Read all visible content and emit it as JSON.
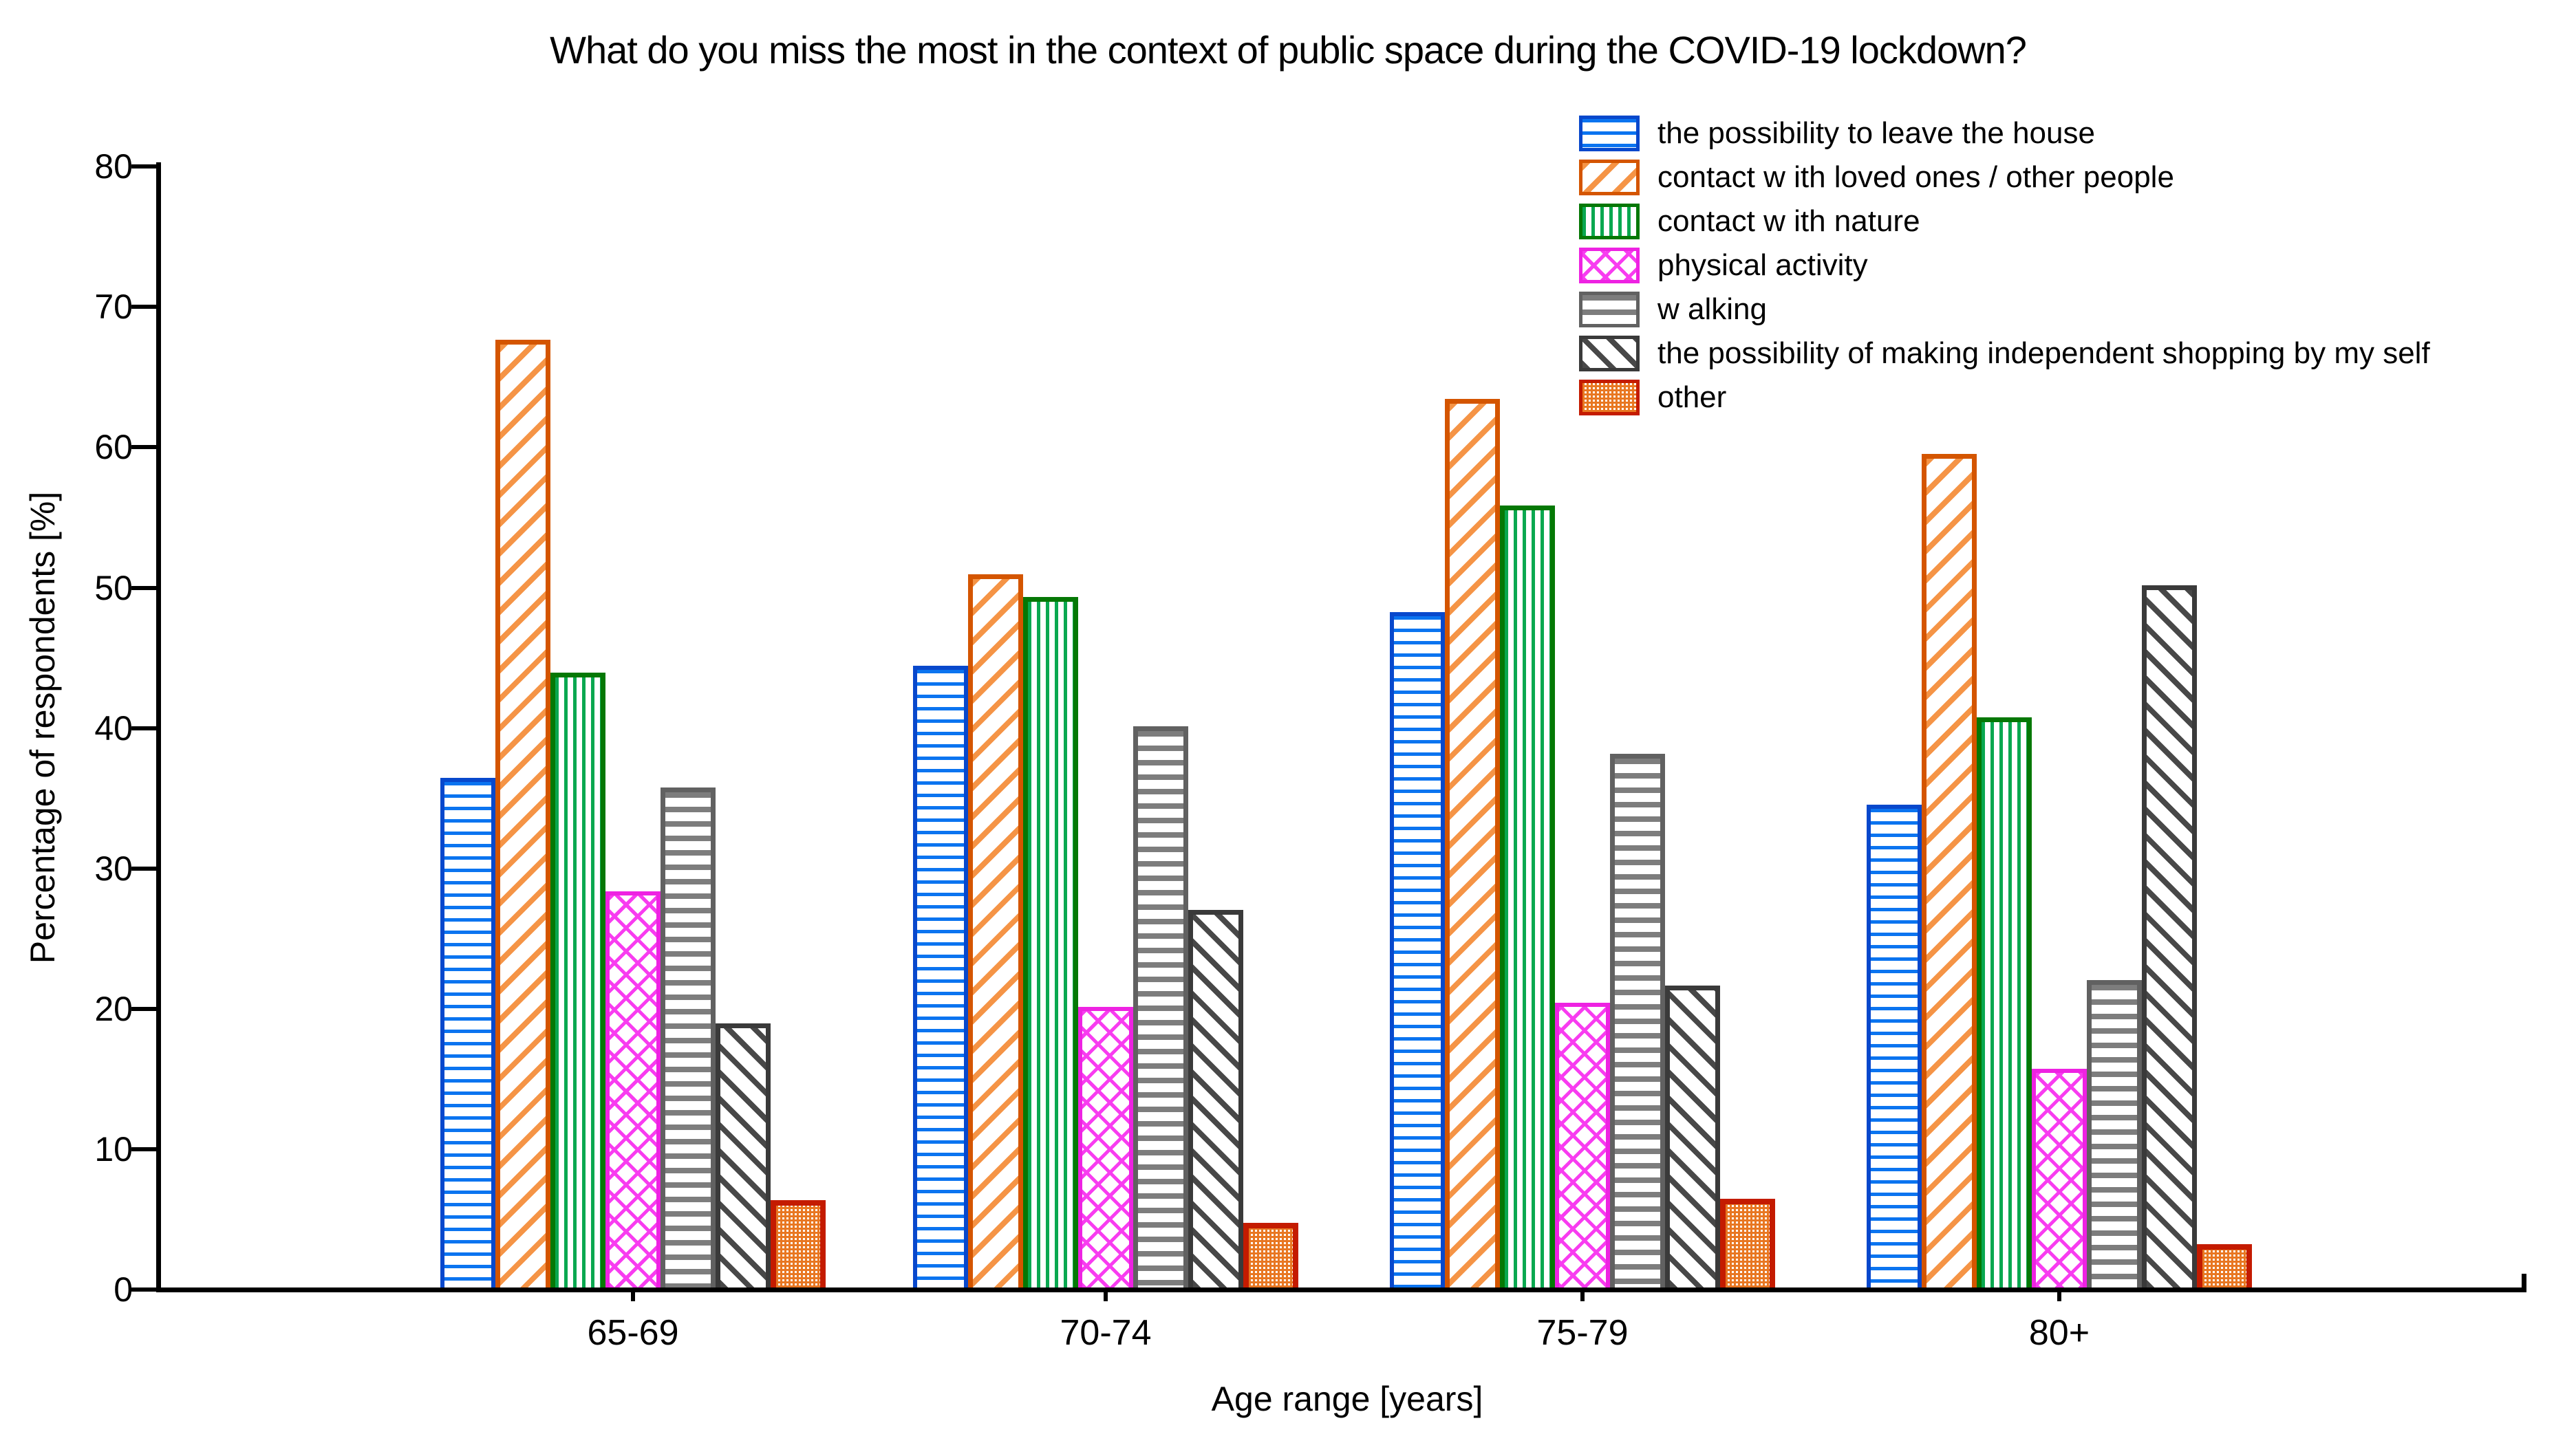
{
  "title": "What do you miss the most in the context of public space during the COVID-19 lockdown?",
  "y_axis": {
    "label": "Percentage of respondents [%]",
    "ticks": [
      0,
      10,
      20,
      30,
      40,
      50,
      60,
      70,
      80
    ],
    "min": 0,
    "max": 80
  },
  "x_axis": {
    "label": "Age range [years]"
  },
  "legend_position": "top-right",
  "chart_data": {
    "type": "bar",
    "title": "What do you miss the most in the context of public space during the COVID-19 lockdown?",
    "xlabel": "Age range [years]",
    "ylabel": "Percentage of respondents [%]",
    "ylim": [
      0,
      80
    ],
    "grid": false,
    "categories": [
      "65-69",
      "70-74",
      "75-79",
      "80+"
    ],
    "series": [
      {
        "name": "the possibility to leave the house",
        "pattern": "h-lines",
        "line_color": "#0b74f0",
        "border_color": "#0848cc",
        "border_px": 6,
        "values": [
          36.3,
          44.3,
          48.1,
          34.4
        ]
      },
      {
        "name": "contact w ith loved ones / other people",
        "pattern": "diag-up",
        "line_color": "#f59446",
        "border_color": "#d45500",
        "border_px": 7,
        "values": [
          67.5,
          50.8,
          63.3,
          59.4
        ]
      },
      {
        "name": "contact w ith nature",
        "pattern": "v-lines",
        "line_color": "#0aa850",
        "border_color": "#057805",
        "border_px": 7,
        "values": [
          43.8,
          49.2,
          55.7,
          40.6
        ]
      },
      {
        "name": "physical activity",
        "pattern": "cross-diag",
        "line_color": "#f83cf0",
        "border_color": "#ee22e2",
        "border_px": 6,
        "values": [
          28.2,
          20.0,
          20.3,
          15.6
        ]
      },
      {
        "name": "w alking",
        "pattern": "h-lines-thick",
        "line_color": "#7d7d7d",
        "border_color": "#616161",
        "border_px": 7,
        "values": [
          35.6,
          40.0,
          38.0,
          21.9
        ]
      },
      {
        "name": "the possibility of making independent shopping by my self",
        "pattern": "diag-down",
        "line_color": "#484848",
        "border_color": "#3a3a3a",
        "border_px": 7,
        "values": [
          18.8,
          26.9,
          21.5,
          50.0
        ]
      },
      {
        "name": "other",
        "pattern": "fine-check",
        "line_color": "#e87722",
        "border_color": "#c41b00",
        "border_px": 8,
        "values": [
          6.2,
          4.6,
          6.3,
          3.1
        ]
      }
    ]
  }
}
